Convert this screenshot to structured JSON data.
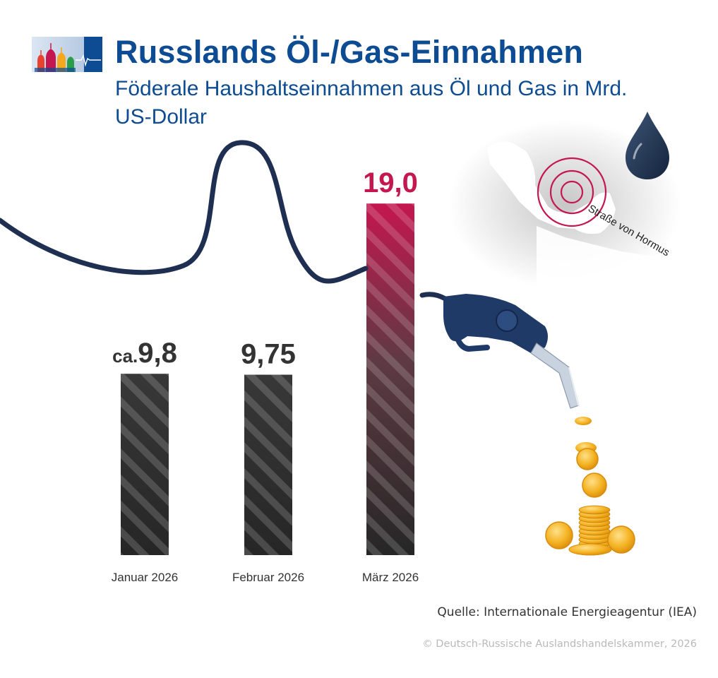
{
  "header": {
    "title": "Russlands Öl-/Gas-Einnahmen",
    "subtitle": "Föderale Haushaltseinnahmen aus Öl und Gas in Mrd. US-Dollar",
    "logo_icon": "kremlin-logo-icon"
  },
  "chart_data": {
    "type": "bar",
    "title": "Russlands Öl-/Gas-Einnahmen",
    "subtitle": "Föderale Haushaltseinnahmen aus Öl und Gas in Mrd. US-Dollar",
    "categories": [
      "Januar 2026",
      "Februar 2026",
      "März 2026"
    ],
    "values": [
      9.8,
      9.75,
      19.0
    ],
    "value_labels": [
      "9,8",
      "9,75",
      "19,0"
    ],
    "value_label_prefix": [
      "ca.",
      "",
      ""
    ],
    "highlight_index": 2,
    "colors": {
      "bar": "#2b2b2b",
      "highlight": "#c4174f",
      "hose": "#1f2f52"
    },
    "xlabel": "",
    "ylabel": "",
    "ylim": [
      0,
      20
    ],
    "grid": false,
    "legend": "none"
  },
  "illustration": {
    "map_label": "Straße von Hormus",
    "icons": [
      "oil-drop-icon",
      "fuel-nozzle-icon",
      "gold-coins-icon",
      "hormuz-map-icon"
    ]
  },
  "footer": {
    "source": "Quelle: Internationale Energieagentur (IEA)",
    "copyright": "© Deutsch-Russische Auslandshandelskammer, 2026"
  }
}
